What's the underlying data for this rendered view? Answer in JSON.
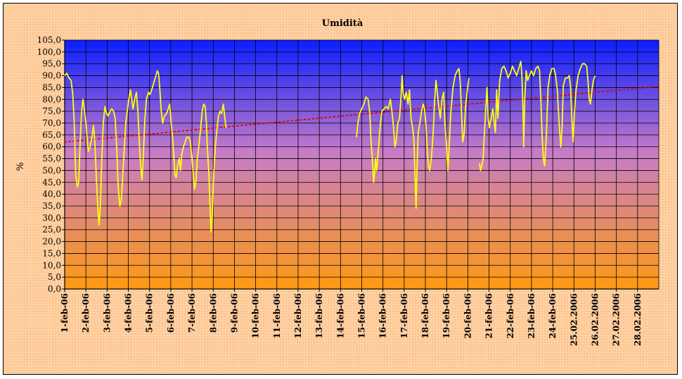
{
  "chart_data": {
    "type": "line",
    "title": "Umidità",
    "ylabel": "%",
    "xlabel": "",
    "ylim": [
      0,
      105
    ],
    "ytick_step": 5,
    "ytick_labels": [
      "0,0",
      "5,0",
      "10,0",
      "15,0",
      "20,0",
      "25,0",
      "30,0",
      "35,0",
      "40,0",
      "45,0",
      "50,0",
      "55,0",
      "60,0",
      "65,0",
      "70,0",
      "75,0",
      "80,0",
      "85,0",
      "90,0",
      "95,0",
      "100,0",
      "105,0"
    ],
    "categories": [
      "1-feb-06",
      "2-feb-06",
      "3-feb-06",
      "4-feb-06",
      "5-feb-06",
      "6-feb-06",
      "7-feb-06",
      "8-feb-06",
      "9-feb-06",
      "10-feb-06",
      "11-feb-06",
      "12-feb-06",
      "13-feb-06",
      "14-feb-06",
      "15-feb-06",
      "16-feb-06",
      "17-feb-06",
      "18-feb-06",
      "19-feb-06",
      "20-feb-06",
      "21-feb-06",
      "22-feb-06",
      "23-feb-06",
      "24-feb-06",
      "25.02.2006",
      "26.02.2006",
      "27.02.2006",
      "28.02.2006"
    ],
    "x_range_days": [
      0,
      28
    ],
    "grid": true,
    "background_gradient": [
      "#0a1eff",
      "#ff9a10"
    ],
    "colors": {
      "series": "#ffff10",
      "trend": "#e00000",
      "grid": "#000000"
    },
    "series": [
      {
        "type": "line",
        "segments": [
          [
            [
              0.0,
              90
            ],
            [
              0.1,
              91
            ],
            [
              0.2,
              89
            ],
            [
              0.3,
              88
            ],
            [
              0.38,
              82
            ],
            [
              0.45,
              70
            ],
            [
              0.52,
              48
            ],
            [
              0.6,
              43
            ],
            [
              0.66,
              45
            ],
            [
              0.72,
              60
            ],
            [
              0.8,
              75
            ],
            [
              0.86,
              80
            ],
            [
              0.92,
              76
            ],
            [
              1.0,
              70
            ],
            [
              1.07,
              62
            ],
            [
              1.12,
              58
            ],
            [
              1.2,
              60
            ],
            [
              1.3,
              65
            ],
            [
              1.36,
              69
            ],
            [
              1.42,
              62
            ],
            [
              1.5,
              45
            ],
            [
              1.57,
              33
            ],
            [
              1.62,
              27
            ],
            [
              1.68,
              35
            ],
            [
              1.75,
              55
            ],
            [
              1.82,
              70
            ],
            [
              1.9,
              77
            ],
            [
              1.97,
              74
            ],
            [
              2.05,
              73
            ],
            [
              2.15,
              75
            ],
            [
              2.22,
              76
            ],
            [
              2.3,
              75
            ],
            [
              2.38,
              72
            ],
            [
              2.45,
              60
            ],
            [
              2.52,
              43
            ],
            [
              2.6,
              35
            ],
            [
              2.66,
              37
            ],
            [
              2.72,
              45
            ],
            [
              2.8,
              58
            ],
            [
              2.88,
              70
            ],
            [
              2.95,
              75
            ],
            [
              3.02,
              80
            ],
            [
              3.1,
              84
            ],
            [
              3.16,
              80
            ],
            [
              3.22,
              76
            ],
            [
              3.3,
              80
            ],
            [
              3.38,
              83
            ],
            [
              3.45,
              75
            ],
            [
              3.52,
              62
            ],
            [
              3.58,
              52
            ],
            [
              3.64,
              46
            ],
            [
              3.7,
              55
            ],
            [
              3.78,
              72
            ],
            [
              3.85,
              80
            ],
            [
              3.95,
              83
            ],
            [
              4.02,
              82
            ],
            [
              4.1,
              84
            ],
            [
              4.2,
              87
            ],
            [
              4.3,
              90
            ],
            [
              4.36,
              92
            ],
            [
              4.42,
              91
            ],
            [
              4.48,
              85
            ],
            [
              4.55,
              75
            ],
            [
              4.62,
              70
            ],
            [
              4.7,
              73
            ],
            [
              4.8,
              74
            ],
            [
              4.88,
              76
            ],
            [
              4.95,
              78
            ],
            [
              5.02,
              70
            ],
            [
              5.1,
              62
            ],
            [
              5.15,
              55
            ],
            [
              5.2,
              48
            ],
            [
              5.26,
              47
            ],
            [
              5.32,
              52
            ],
            [
              5.4,
              55
            ],
            [
              5.46,
              50
            ],
            [
              5.52,
              57
            ],
            [
              5.6,
              60
            ],
            [
              5.68,
              62
            ],
            [
              5.75,
              64
            ],
            [
              5.85,
              64
            ],
            [
              5.92,
              62
            ],
            [
              6.0,
              55
            ],
            [
              6.08,
              46
            ],
            [
              6.12,
              42
            ],
            [
              6.18,
              45
            ],
            [
              6.25,
              55
            ],
            [
              6.32,
              60
            ],
            [
              6.4,
              67
            ],
            [
              6.48,
              75
            ],
            [
              6.55,
              78
            ],
            [
              6.62,
              77
            ],
            [
              6.68,
              70
            ],
            [
              6.72,
              60
            ],
            [
              6.8,
              48
            ],
            [
              6.86,
              33
            ],
            [
              6.9,
              24
            ],
            [
              6.95,
              30
            ],
            [
              7.02,
              48
            ],
            [
              7.1,
              60
            ],
            [
              7.18,
              68
            ],
            [
              7.25,
              73
            ],
            [
              7.32,
              75
            ],
            [
              7.4,
              74
            ],
            [
              7.48,
              78
            ],
            [
              7.55,
              72
            ],
            [
              7.6,
              68
            ]
          ],
          [
            [
              13.75,
              64
            ],
            [
              13.82,
              70
            ],
            [
              13.9,
              74
            ],
            [
              14.0,
              76
            ],
            [
              14.1,
              78
            ],
            [
              14.2,
              81
            ],
            [
              14.3,
              80
            ],
            [
              14.38,
              74
            ],
            [
              14.44,
              62
            ],
            [
              14.5,
              55
            ],
            [
              14.56,
              45
            ],
            [
              14.6,
              48
            ],
            [
              14.65,
              55
            ],
            [
              14.7,
              50
            ],
            [
              14.78,
              58
            ],
            [
              14.86,
              68
            ],
            [
              14.95,
              75
            ],
            [
              15.05,
              76
            ],
            [
              15.15,
              77
            ],
            [
              15.25,
              76
            ],
            [
              15.35,
              80
            ],
            [
              15.42,
              75
            ],
            [
              15.5,
              68
            ],
            [
              15.56,
              60
            ],
            [
              15.62,
              62
            ],
            [
              15.7,
              70
            ],
            [
              15.78,
              72
            ],
            [
              15.86,
              82
            ],
            [
              15.9,
              90
            ],
            [
              15.95,
              83
            ],
            [
              16.02,
              80
            ],
            [
              16.1,
              83
            ],
            [
              16.18,
              78
            ],
            [
              16.25,
              84
            ],
            [
              16.32,
              72
            ],
            [
              16.4,
              68
            ],
            [
              16.46,
              63
            ],
            [
              16.52,
              45
            ],
            [
              16.56,
              34
            ],
            [
              16.6,
              50
            ],
            [
              16.66,
              66
            ],
            [
              16.74,
              70
            ],
            [
              16.82,
              75
            ],
            [
              16.9,
              78
            ],
            [
              16.96,
              76
            ],
            [
              17.02,
              70
            ],
            [
              17.08,
              60
            ],
            [
              17.14,
              52
            ],
            [
              17.2,
              50
            ],
            [
              17.28,
              55
            ],
            [
              17.36,
              65
            ],
            [
              17.44,
              80
            ],
            [
              17.5,
              88
            ],
            [
              17.56,
              83
            ],
            [
              17.62,
              78
            ],
            [
              17.7,
              72
            ],
            [
              17.78,
              80
            ],
            [
              17.86,
              83
            ],
            [
              17.92,
              70
            ],
            [
              18.0,
              60
            ],
            [
              18.06,
              50
            ],
            [
              18.12,
              60
            ],
            [
              18.2,
              75
            ],
            [
              18.3,
              85
            ],
            [
              18.4,
              90
            ],
            [
              18.5,
              92
            ],
            [
              18.58,
              93
            ],
            [
              18.64,
              88
            ],
            [
              18.7,
              75
            ],
            [
              18.76,
              62
            ],
            [
              18.82,
              65
            ],
            [
              18.9,
              78
            ],
            [
              18.98,
              84
            ],
            [
              19.05,
              89
            ]
          ],
          [
            [
              19.55,
              53
            ],
            [
              19.6,
              50
            ],
            [
              19.66,
              52
            ],
            [
              19.72,
              55
            ],
            [
              19.78,
              65
            ],
            [
              19.84,
              75
            ],
            [
              19.9,
              85
            ],
            [
              19.96,
              72
            ],
            [
              20.02,
              68
            ],
            [
              20.1,
              72
            ],
            [
              20.18,
              76
            ],
            [
              20.24,
              70
            ],
            [
              20.3,
              66
            ],
            [
              20.36,
              84
            ],
            [
              20.42,
              72
            ],
            [
              20.5,
              88
            ],
            [
              20.6,
              93
            ],
            [
              20.7,
              94
            ],
            [
              20.8,
              92
            ],
            [
              20.9,
              89
            ],
            [
              21.0,
              91
            ],
            [
              21.1,
              94
            ],
            [
              21.2,
              92
            ],
            [
              21.3,
              90
            ],
            [
              21.4,
              93
            ],
            [
              21.5,
              96
            ],
            [
              21.55,
              90
            ],
            [
              21.6,
              75
            ],
            [
              21.63,
              60
            ],
            [
              21.68,
              80
            ],
            [
              21.75,
              92
            ],
            [
              21.82,
              88
            ],
            [
              21.9,
              90
            ],
            [
              22.0,
              92
            ],
            [
              22.1,
              90
            ],
            [
              22.2,
              93
            ],
            [
              22.3,
              94
            ],
            [
              22.38,
              92
            ],
            [
              22.44,
              80
            ],
            [
              22.5,
              65
            ],
            [
              22.56,
              55
            ],
            [
              22.62,
              52
            ],
            [
              22.7,
              65
            ],
            [
              22.78,
              85
            ],
            [
              22.86,
              90
            ],
            [
              22.96,
              93
            ],
            [
              23.06,
              93
            ],
            [
              23.14,
              90
            ],
            [
              23.22,
              84
            ],
            [
              23.3,
              70
            ],
            [
              23.38,
              60
            ],
            [
              23.44,
              68
            ],
            [
              23.5,
              86
            ],
            [
              23.6,
              89
            ],
            [
              23.7,
              89
            ],
            [
              23.78,
              90
            ],
            [
              23.84,
              85
            ],
            [
              23.9,
              72
            ],
            [
              23.96,
              62
            ],
            [
              24.02,
              74
            ],
            [
              24.1,
              84
            ],
            [
              24.2,
              90
            ],
            [
              24.3,
              93
            ],
            [
              24.4,
              95
            ],
            [
              24.5,
              95
            ],
            [
              24.6,
              94
            ],
            [
              24.66,
              88
            ],
            [
              24.72,
              80
            ],
            [
              24.78,
              78
            ],
            [
              24.85,
              84
            ],
            [
              24.92,
              88
            ],
            [
              25.0,
              90
            ]
          ]
        ]
      },
      {
        "type": "trend",
        "style": "dotted",
        "points": [
          [
            0,
            62
          ],
          [
            28,
            85.5
          ]
        ]
      }
    ]
  }
}
